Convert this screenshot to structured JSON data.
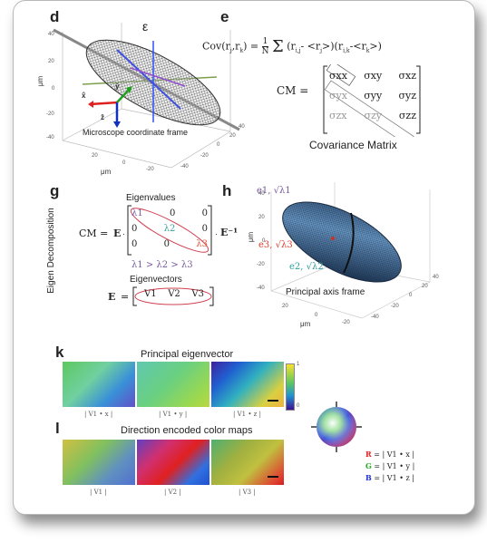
{
  "panels": {
    "d": {
      "label": "d",
      "epsilon": "ε",
      "caption": "Microscope coordinate frame",
      "axis_unit": "μm",
      "ticks_z": [
        "40",
        "20",
        "0",
        "-20",
        "-40"
      ],
      "ticks_x": [
        "20",
        "0",
        "-20"
      ],
      "ticks_y": [
        "-40",
        "-20",
        "0",
        "20",
        "40"
      ],
      "hat_x": "x̂",
      "hat_y": "ŷ",
      "hat_z": "ẑ"
    },
    "e": {
      "label": "e",
      "cov_formula_left": "Cov(r",
      "cov_formula_full": "Cov(rj,rk) = 1/N Σ (ri,j - <rj>)(ri,k - <rk>)",
      "cm_label": "CM =",
      "matrix": [
        [
          "σxx",
          "σxy",
          "σxz"
        ],
        [
          "σyx",
          "σyy",
          "σyz"
        ],
        [
          "σzx",
          "σzy",
          "σzz"
        ]
      ],
      "caption": "Covariance Matrix"
    },
    "g": {
      "label": "g",
      "side_label": "Eigen Decomposition",
      "eigenvalues_title": "Eigenvalues",
      "cm_eq": "CM =",
      "E": "E",
      "E_inv": "E⁻¹",
      "diag": [
        "λ1",
        "λ2",
        "λ3"
      ],
      "zero": "0",
      "order": "λ1 > λ2 > λ3",
      "eigenvectors_title": "Eigenvectors",
      "vectors": [
        "V1",
        "V2",
        "V3"
      ]
    },
    "h": {
      "label": "h",
      "e1": "e1, √λ1",
      "e2": "e2, √λ2",
      "e3": "e3, √λ3",
      "caption": "Principal axis frame",
      "axis_unit": "μm",
      "ticks_z": [
        "40",
        "20",
        "0",
        "-20",
        "-40"
      ],
      "ticks_x": [
        "20",
        "0",
        "-20"
      ],
      "ticks_y": [
        "-40",
        "-20",
        "0",
        "20",
        "40"
      ]
    },
    "k": {
      "label": "k",
      "title": "Principal eigenvector",
      "maps": [
        "| V1 • x |",
        "| V1 • y |",
        "| V1 • z |"
      ],
      "colorbar_max": "1",
      "colorbar_min": "0"
    },
    "l": {
      "label": "l",
      "title": "Direction encoded color maps",
      "maps": [
        "| V1 |",
        "| V2 |",
        "| V3 |"
      ],
      "legend": [
        {
          "channel": "R",
          "rest": "= | V1 • x |",
          "color": "#e02020"
        },
        {
          "channel": "G",
          "rest": "= | V1 • y |",
          "color": "#20b020"
        },
        {
          "channel": "B",
          "rest": "= | V1 • z |",
          "color": "#2030d0"
        }
      ]
    }
  }
}
